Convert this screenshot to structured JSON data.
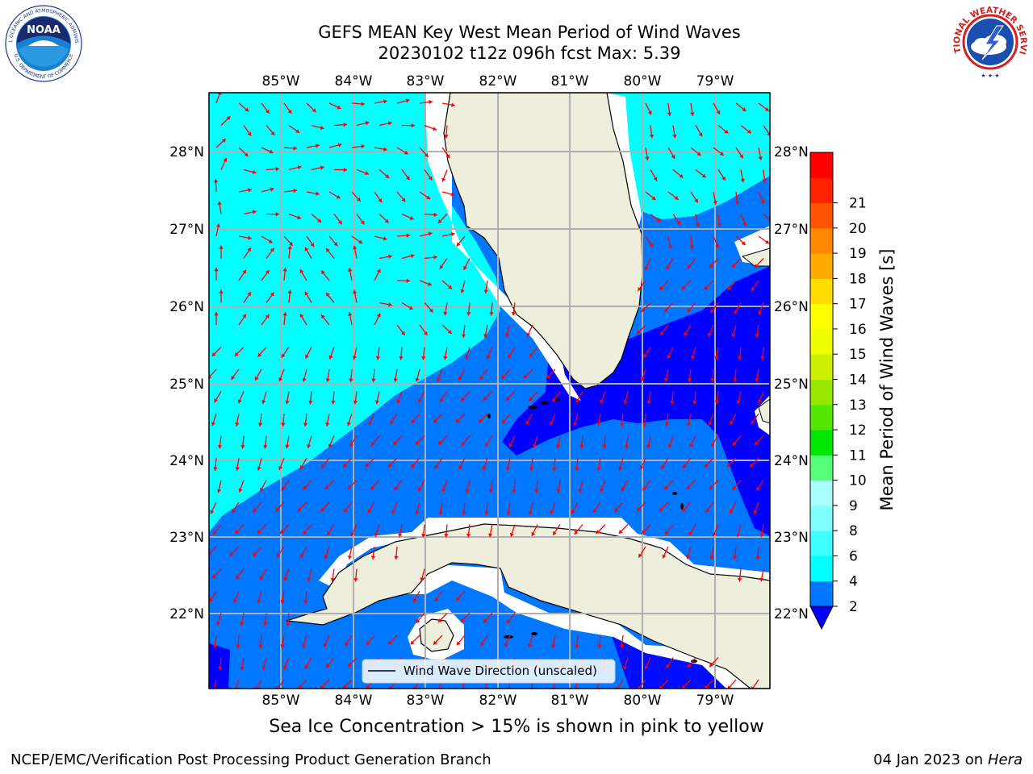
{
  "title_line1": "GEFS MEAN Key West Mean Period of Wind Waves",
  "title_line2": "20230102 t12z 096h fcst   Max: 5.39",
  "caption": "Sea Ice Concentration > 15% is shown in pink to yellow",
  "footer_left": "NCEP/EMC/Verification Post Processing Product Generation Branch",
  "footer_right_date": "04 Jan 2023 on",
  "footer_right_host": "Hera",
  "logos": {
    "noaa_text": "NOAA",
    "noaa_ring_top": "NATIONAL OCEANIC AND ATMOSPHERIC ADMINISTRATION",
    "noaa_ring_bottom": "U.S. DEPARTMENT OF COMMERCE",
    "nws_ring": "NATIONAL WEATHER SERVICE"
  },
  "map": {
    "lon_labels": [
      "85°W",
      "84°W",
      "83°W",
      "82°W",
      "81°W",
      "80°W",
      "79°W"
    ],
    "lat_labels": [
      "28°N",
      "27°N",
      "26°N",
      "25°N",
      "24°N",
      "23°N",
      "22°N"
    ],
    "legend_label": "Wind Wave Direction (unscaled)",
    "land_color": "#eeeedd",
    "arrow_color": "#ff0000"
  },
  "colorbar": {
    "label": "Mean Period of Wind Waves [s]",
    "ticks": [
      "2",
      "4",
      "6",
      "8",
      "9",
      "10",
      "11",
      "12",
      "13",
      "14",
      "15",
      "16",
      "17",
      "18",
      "19",
      "20",
      "21"
    ],
    "colors": [
      "#0077ff",
      "#00ffff",
      "#40ffff",
      "#80ffff",
      "#aaffff",
      "#55ff77",
      "#00e600",
      "#55e600",
      "#99e600",
      "#ccee00",
      "#eeff00",
      "#ffff00",
      "#ffdd00",
      "#ffaa00",
      "#ff8800",
      "#ff5500",
      "#ff2200",
      "#ff0000"
    ],
    "under_color": "#0000ff"
  }
}
